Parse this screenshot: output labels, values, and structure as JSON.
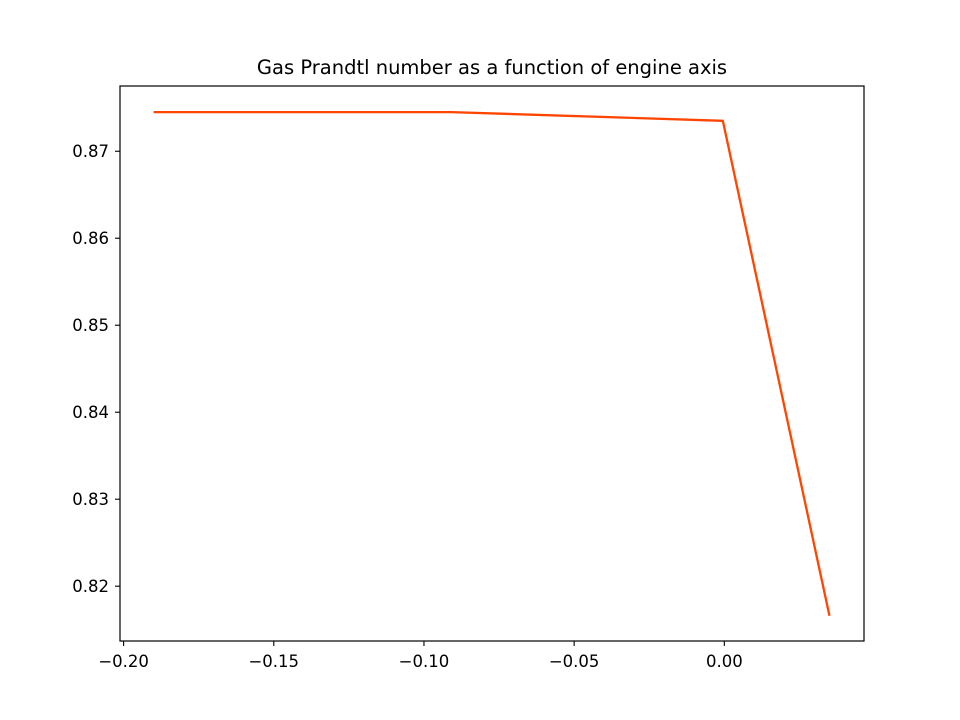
{
  "chart_data": {
    "type": "line",
    "title": "Gas Prandtl number as a function of engine axis",
    "xlabel": "",
    "ylabel": "",
    "xlim": [
      -0.2012,
      0.0465
    ],
    "ylim": [
      0.8137,
      0.8775
    ],
    "xticks": [
      -0.2,
      -0.15,
      -0.1,
      -0.05,
      0.0
    ],
    "xtick_labels": [
      "−0.20",
      "−0.15",
      "−0.10",
      "−0.05",
      "0.00"
    ],
    "yticks": [
      0.82,
      0.83,
      0.84,
      0.85,
      0.86,
      0.87
    ],
    "ytick_labels": [
      "0.82",
      "0.83",
      "0.84",
      "0.85",
      "0.86",
      "0.87"
    ],
    "grid": false,
    "legend": "none",
    "series": [
      {
        "color": "#ff4500",
        "x": [
          -0.19,
          -0.091,
          -0.0005,
          0.035
        ],
        "y": [
          0.8745,
          0.8745,
          0.8735,
          0.8166
        ]
      }
    ]
  }
}
